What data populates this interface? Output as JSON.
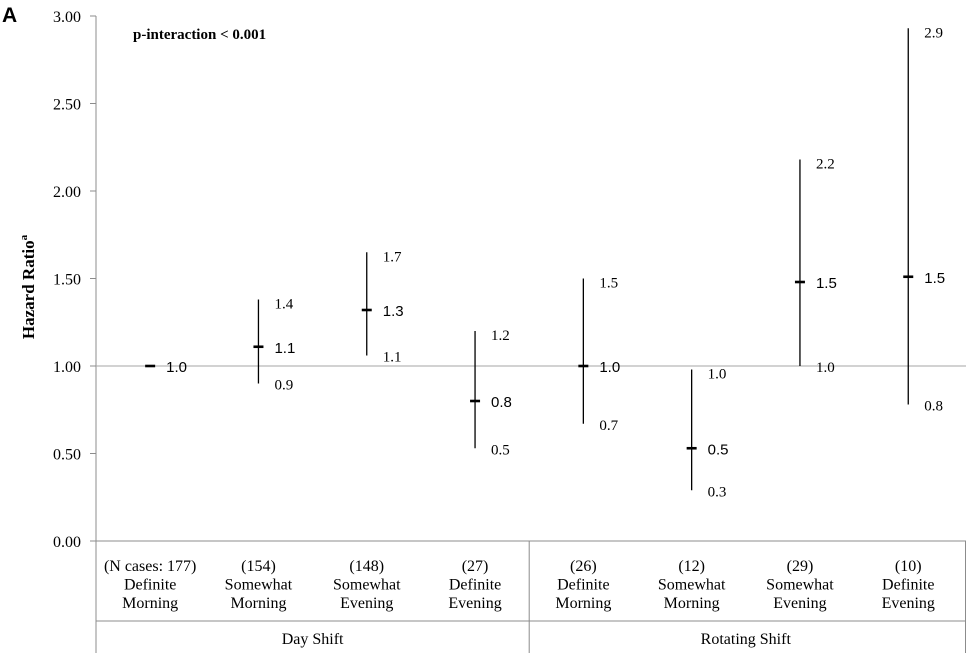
{
  "panel_label": "A",
  "annotation": "p-interaction < 0.001",
  "ylabel_main": "Hazard Ratio",
  "ylabel_sup": "a",
  "chart_data": {
    "type": "scatter",
    "subtype": "point-with-error-bars",
    "ylabel": "Hazard Ratio",
    "ylim": [
      0,
      3
    ],
    "yticks": [
      "0.00",
      "0.50",
      "1.00",
      "1.50",
      "2.00",
      "2.50",
      "3.00"
    ],
    "reference_line": 1.0,
    "grid": false,
    "groups": [
      {
        "label": "Day Shift",
        "categories": [
          0,
          1,
          2,
          3
        ]
      },
      {
        "label": "Rotating Shift",
        "categories": [
          4,
          5,
          6,
          7
        ]
      }
    ],
    "categories": [
      {
        "n": "(N cases: 177)",
        "line1": "Definite",
        "line2": "Morning",
        "hr": 1.0,
        "lower": null,
        "upper": null,
        "hr_label": "1.0",
        "lower_label": "",
        "upper_label": ""
      },
      {
        "n": "(154)",
        "line1": "Somewhat",
        "line2": "Morning",
        "hr": 1.11,
        "lower": 0.9,
        "upper": 1.38,
        "hr_label": "1.1",
        "lower_label": "0.9",
        "upper_label": "1.4"
      },
      {
        "n": "(148)",
        "line1": "Somewhat",
        "line2": "Evening",
        "hr": 1.32,
        "lower": 1.06,
        "upper": 1.65,
        "hr_label": "1.3",
        "lower_label": "1.1",
        "upper_label": "1.7"
      },
      {
        "n": "(27)",
        "line1": "Definite",
        "line2": "Evening",
        "hr": 0.8,
        "lower": 0.53,
        "upper": 1.2,
        "hr_label": "0.8",
        "lower_label": "0.5",
        "upper_label": "1.2"
      },
      {
        "n": "(26)",
        "line1": "Definite",
        "line2": "Morning",
        "hr": 1.0,
        "lower": 0.67,
        "upper": 1.5,
        "hr_label": "1.0",
        "lower_label": "0.7",
        "upper_label": "1.5"
      },
      {
        "n": "(12)",
        "line1": "Somewhat",
        "line2": "Morning",
        "hr": 0.53,
        "lower": 0.29,
        "upper": 0.98,
        "hr_label": "0.5",
        "lower_label": "0.3",
        "upper_label": "1.0"
      },
      {
        "n": "(29)",
        "line1": "Somewhat",
        "line2": "Evening",
        "hr": 1.48,
        "lower": 1.0,
        "upper": 2.18,
        "hr_label": "1.5",
        "lower_label": "1.0",
        "upper_label": "2.2"
      },
      {
        "n": "(10)",
        "line1": "Definite",
        "line2": "Evening",
        "hr": 1.51,
        "lower": 0.78,
        "upper": 2.93,
        "hr_label": "1.5",
        "lower_label": "0.8",
        "upper_label": "2.9"
      }
    ]
  }
}
